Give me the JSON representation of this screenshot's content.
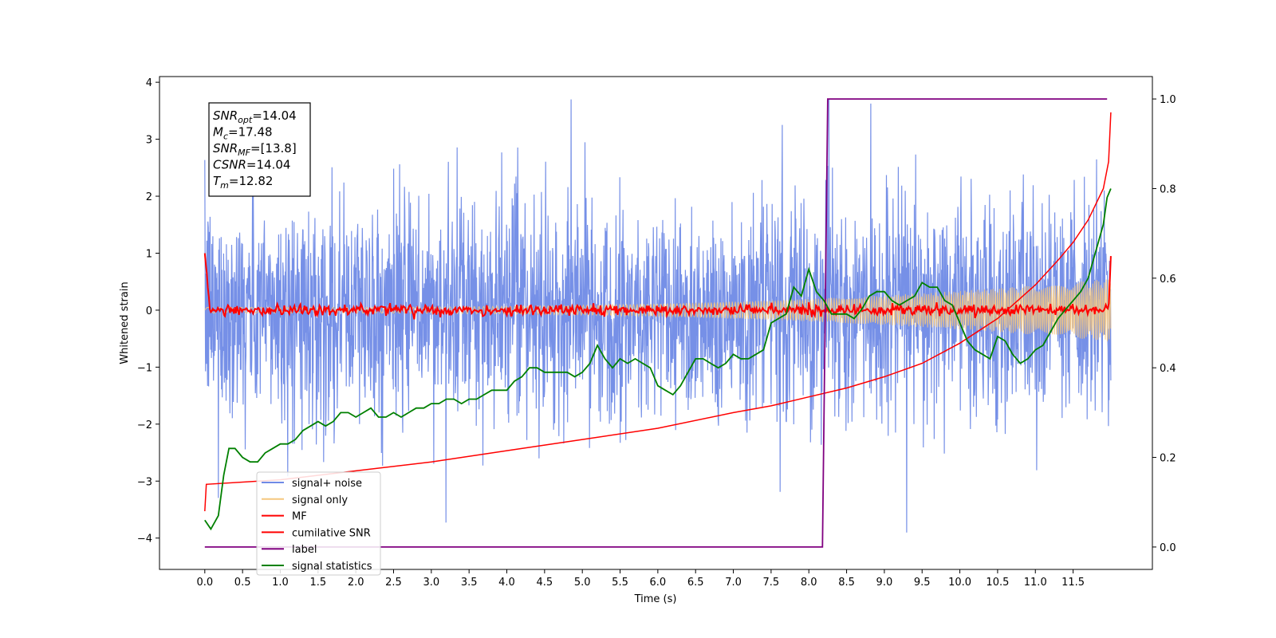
{
  "chart_data": {
    "type": "line",
    "xlabel": "Time (s)",
    "ylabel": "Whitened strain",
    "xlim": [
      -0.6,
      12.55
    ],
    "ylim": [
      -4.55,
      4.1
    ],
    "y2lim": [
      -0.05,
      1.05
    ],
    "x_ticks": [
      0.0,
      0.5,
      1.0,
      1.5,
      2.0,
      2.5,
      3.0,
      3.5,
      4.0,
      4.5,
      5.0,
      5.5,
      6.0,
      6.5,
      7.0,
      7.5,
      8.0,
      8.5,
      9.0,
      9.5,
      10.0,
      10.5,
      11.0,
      11.5
    ],
    "x_tick_labels": [
      "0.0",
      "0.5",
      "1.0",
      "1.5",
      "2.0",
      "2.5",
      "3.0",
      "3.5",
      "4.0",
      "4.5",
      "5.0",
      "5.5",
      "6.0",
      "6.5",
      "7.0",
      "7.5",
      "8.0",
      "8.5",
      "9.0",
      "9.5",
      "10.0",
      "10.5",
      "11.0",
      "11.5"
    ],
    "y_ticks": [
      4,
      3,
      2,
      1,
      0,
      -1,
      -2,
      -3,
      -4
    ],
    "y_tick_labels": [
      "4",
      "3",
      "2",
      "1",
      "0",
      "−1",
      "−2",
      "−3",
      "−4"
    ],
    "y2_ticks": [
      1.0,
      0.8,
      0.6,
      0.4,
      0.2,
      0.0
    ],
    "y2_tick_labels": [
      "1.0",
      "0.8",
      "0.6",
      "0.4",
      "0.2",
      "0.0"
    ],
    "grid": false,
    "legend_location": "lower-left",
    "legend": [
      {
        "name": "signal+ noise",
        "color": "#6f8ae6"
      },
      {
        "name": "signal only",
        "color": "#f5c77e"
      },
      {
        "name": "MF",
        "color": "#ff0000"
      },
      {
        "name": "cumilative SNR",
        "color": "#ff0000"
      },
      {
        "name": "label",
        "color": "#800080"
      },
      {
        "name": "signal statistics",
        "color": "#008000"
      }
    ],
    "annotations": [
      {
        "label": "SNR",
        "sub": "opt",
        "value": "=14.04"
      },
      {
        "label": "M",
        "sub": "c",
        "value": "=17.48"
      },
      {
        "label": "SNR",
        "sub": "MF",
        "value": "=[13.8]"
      },
      {
        "label": "CSNR",
        "sub": "",
        "value": "=14.04"
      },
      {
        "label": "T",
        "sub": "m",
        "value": "=12.82"
      }
    ],
    "series": {
      "signal_noise": {
        "name": "signal+ noise",
        "axis": "left",
        "x_start": 0.0,
        "x_end": 12.0,
        "std": 0.95,
        "min": -4.15,
        "max": 3.7
      },
      "signal_only": {
        "name": "signal only",
        "axis": "left",
        "x_start": 0.0,
        "x_end": 12.0,
        "amp_start": 0.05,
        "amp_end": 0.55
      },
      "mf": {
        "name": "MF",
        "axis": "left",
        "x_start": 0.0,
        "x_end": 12.0,
        "start_value": 1.0,
        "end_value": 0.95,
        "baseline": 0.0
      },
      "cumulative_snr": {
        "name": "cumilative SNR",
        "axis": "right",
        "x": [
          0.0,
          0.02,
          1.0,
          2.0,
          3.0,
          4.0,
          5.0,
          6.0,
          7.0,
          7.5,
          8.0,
          8.5,
          9.0,
          9.5,
          10.0,
          10.5,
          11.0,
          11.3,
          11.5,
          11.7,
          11.9,
          11.97,
          12.0
        ],
        "y": [
          0.08,
          0.14,
          0.15,
          0.17,
          0.19,
          0.215,
          0.24,
          0.265,
          0.3,
          0.315,
          0.335,
          0.355,
          0.38,
          0.41,
          0.455,
          0.51,
          0.585,
          0.64,
          0.68,
          0.73,
          0.8,
          0.86,
          0.97
        ]
      },
      "label": {
        "name": "label",
        "axis": "right",
        "x": [
          0.0,
          8.18,
          8.25,
          11.95
        ],
        "y": [
          0.0,
          0.0,
          1.0,
          1.0
        ]
      },
      "signal_statistics": {
        "name": "signal statistics",
        "axis": "right",
        "x": [
          0.0,
          0.08,
          0.18,
          0.25,
          0.32,
          0.4,
          0.5,
          0.6,
          0.7,
          0.8,
          0.9,
          1.0,
          1.1,
          1.2,
          1.3,
          1.4,
          1.5,
          1.6,
          1.7,
          1.8,
          1.9,
          2.0,
          2.1,
          2.2,
          2.3,
          2.4,
          2.5,
          2.6,
          2.7,
          2.8,
          2.9,
          3.0,
          3.1,
          3.2,
          3.3,
          3.4,
          3.5,
          3.6,
          3.7,
          3.8,
          3.9,
          4.0,
          4.1,
          4.2,
          4.3,
          4.4,
          4.5,
          4.6,
          4.7,
          4.8,
          4.9,
          5.0,
          5.1,
          5.2,
          5.3,
          5.4,
          5.5,
          5.6,
          5.7,
          5.8,
          5.9,
          6.0,
          6.1,
          6.2,
          6.3,
          6.4,
          6.5,
          6.6,
          6.7,
          6.8,
          6.9,
          7.0,
          7.1,
          7.2,
          7.3,
          7.4,
          7.5,
          7.6,
          7.7,
          7.8,
          7.9,
          8.0,
          8.1,
          8.2,
          8.3,
          8.4,
          8.5,
          8.6,
          8.7,
          8.8,
          8.9,
          9.0,
          9.1,
          9.2,
          9.3,
          9.4,
          9.5,
          9.6,
          9.7,
          9.8,
          9.9,
          10.0,
          10.1,
          10.2,
          10.3,
          10.4,
          10.5,
          10.6,
          10.7,
          10.8,
          10.9,
          11.0,
          11.1,
          11.2,
          11.3,
          11.4,
          11.5,
          11.6,
          11.7,
          11.8,
          11.9,
          11.95,
          12.0
        ],
        "y": [
          0.06,
          0.04,
          0.07,
          0.16,
          0.22,
          0.22,
          0.2,
          0.19,
          0.19,
          0.21,
          0.22,
          0.23,
          0.23,
          0.24,
          0.26,
          0.27,
          0.28,
          0.27,
          0.28,
          0.3,
          0.3,
          0.29,
          0.3,
          0.31,
          0.29,
          0.29,
          0.3,
          0.29,
          0.3,
          0.31,
          0.31,
          0.32,
          0.32,
          0.33,
          0.33,
          0.32,
          0.33,
          0.33,
          0.34,
          0.35,
          0.35,
          0.35,
          0.37,
          0.38,
          0.4,
          0.4,
          0.39,
          0.39,
          0.39,
          0.39,
          0.38,
          0.39,
          0.41,
          0.45,
          0.42,
          0.4,
          0.42,
          0.41,
          0.42,
          0.41,
          0.4,
          0.36,
          0.35,
          0.34,
          0.36,
          0.39,
          0.42,
          0.42,
          0.41,
          0.4,
          0.41,
          0.43,
          0.42,
          0.42,
          0.43,
          0.44,
          0.5,
          0.51,
          0.52,
          0.58,
          0.56,
          0.62,
          0.57,
          0.55,
          0.52,
          0.52,
          0.52,
          0.51,
          0.53,
          0.56,
          0.57,
          0.57,
          0.55,
          0.54,
          0.55,
          0.56,
          0.59,
          0.58,
          0.58,
          0.55,
          0.54,
          0.5,
          0.46,
          0.44,
          0.43,
          0.42,
          0.47,
          0.46,
          0.43,
          0.41,
          0.42,
          0.44,
          0.45,
          0.48,
          0.51,
          0.53,
          0.55,
          0.57,
          0.6,
          0.66,
          0.72,
          0.78,
          0.8
        ]
      }
    }
  }
}
